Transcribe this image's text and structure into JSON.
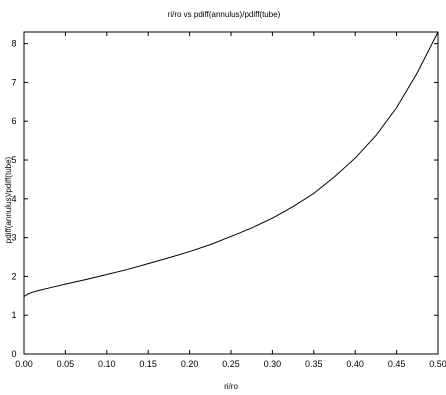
{
  "chart_data": {
    "type": "line",
    "title": "ri/ro vs pdiff(annulus)/pdiff(tube)",
    "xlabel": "ri/ro",
    "ylabel": "pdiff(annulus)/pdiff(tube)",
    "xlim": [
      0,
      0.5
    ],
    "ylim": [
      0,
      8.3
    ],
    "x_ticks": [
      "0.00",
      "0.05",
      "0.10",
      "0.15",
      "0.20",
      "0.25",
      "0.30",
      "0.35",
      "0.40",
      "0.45",
      "0.50"
    ],
    "y_ticks": [
      "0",
      "1",
      "2",
      "3",
      "4",
      "5",
      "6",
      "7",
      "8"
    ],
    "grid": false,
    "series": [
      {
        "color": "#000000",
        "x": [
          0.0,
          0.005,
          0.01,
          0.02,
          0.03,
          0.05,
          0.075,
          0.1,
          0.125,
          0.15,
          0.175,
          0.2,
          0.225,
          0.25,
          0.275,
          0.3,
          0.325,
          0.35,
          0.375,
          0.4,
          0.425,
          0.45,
          0.475,
          0.5
        ],
        "y": [
          1.48,
          1.55,
          1.59,
          1.65,
          1.7,
          1.8,
          1.92,
          2.05,
          2.18,
          2.33,
          2.48,
          2.64,
          2.82,
          3.03,
          3.25,
          3.5,
          3.8,
          4.14,
          4.57,
          5.05,
          5.63,
          6.35,
          7.25,
          8.3
        ]
      }
    ]
  }
}
